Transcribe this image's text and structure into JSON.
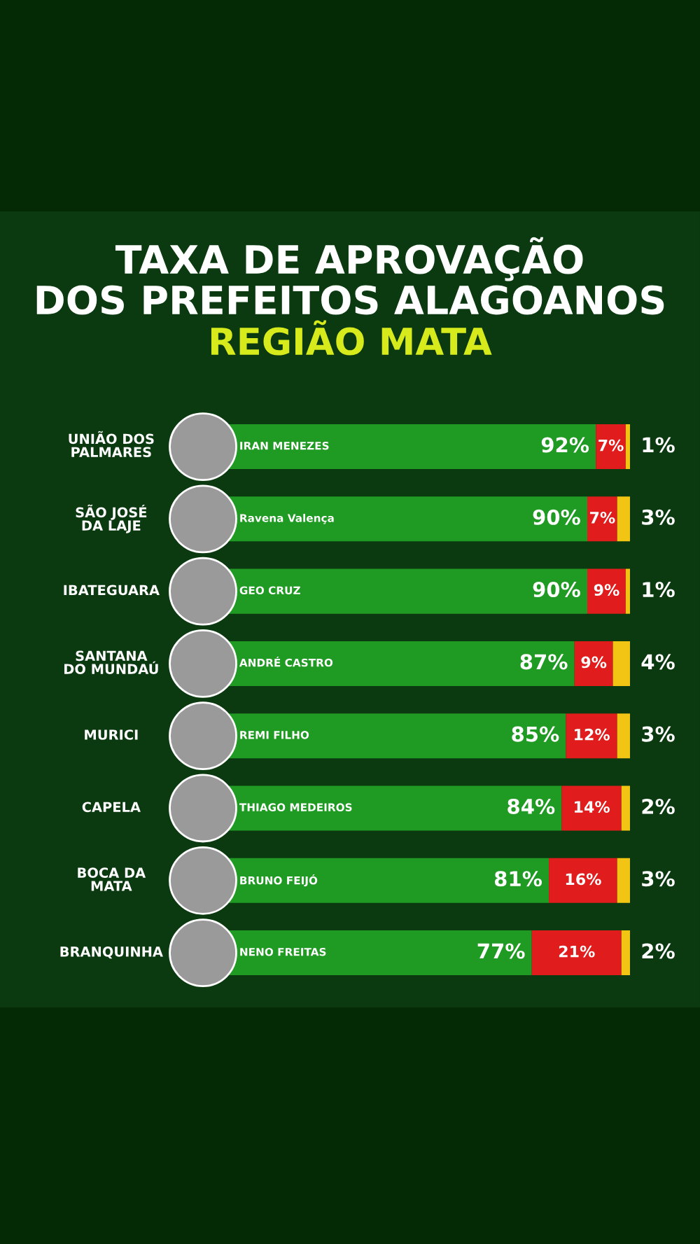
{
  "chart_data": {
    "type": "bar",
    "orientation": "horizontal",
    "stacked": true,
    "title": "TAXA DE APROVAÇÃO\nDOS PREFEITOS ALAGOANOS",
    "subtitle": "REGIÃO MATA",
    "categories": [
      "UNIÃO DOS\nPALMARES",
      "SÃO JOSÉ\nDA LAJE",
      "IBATEGUARA",
      "SANTANA\nDO MUNDAÚ",
      "MURICI",
      "CAPELA",
      "BOCA DA\nMATA",
      "BRANQUINHA"
    ],
    "series": [
      {
        "color": "#1f9a22",
        "values": [
          92,
          90,
          90,
          87,
          85,
          84,
          81,
          77
        ],
        "value_labels": [
          "92%",
          "90%",
          "90%",
          "87%",
          "85%",
          "84%",
          "81%",
          "77%"
        ]
      },
      {
        "color": "#e01c1c",
        "values": [
          7,
          7,
          9,
          9,
          12,
          14,
          16,
          21
        ],
        "value_labels": [
          "7%",
          "7%",
          "9%",
          "9%",
          "12%",
          "14%",
          "16%",
          "21%"
        ]
      },
      {
        "color": "#f2c413",
        "values": [
          1,
          3,
          1,
          4,
          3,
          2,
          3,
          2
        ],
        "value_labels": [
          "1%",
          "3%",
          "1%",
          "4%",
          "3%",
          "2%",
          "3%",
          "2%"
        ]
      }
    ],
    "annotations": [
      "IRAN MENEZES",
      "Ravena Valença",
      "GEO CRUZ",
      "ANDRÉ CASTRO",
      "REMI FILHO",
      "THIAGO MEDEIROS",
      "BRUNO FEIJÓ",
      "NENO FREITAS"
    ]
  }
}
